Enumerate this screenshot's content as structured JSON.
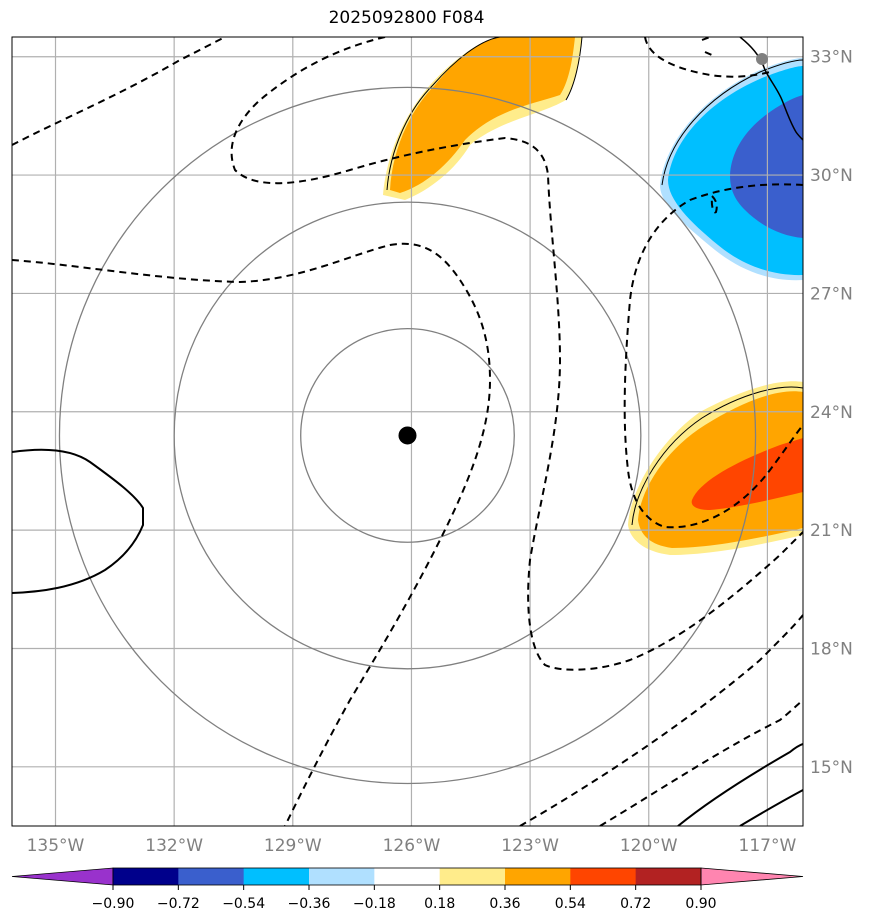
{
  "title": "2025092800 F084",
  "map": {
    "lon_range": [
      -136.1,
      -116.1
    ],
    "lat_range": [
      13.5,
      33.5
    ],
    "lon_ticks": [
      {
        "value": -135,
        "label": "135°W"
      },
      {
        "value": -132,
        "label": "132°W"
      },
      {
        "value": -129,
        "label": "129°W"
      },
      {
        "value": -126,
        "label": "126°W"
      },
      {
        "value": -123,
        "label": "123°W"
      },
      {
        "value": -120,
        "label": "120°W"
      },
      {
        "value": -117,
        "label": "117°W"
      }
    ],
    "lat_ticks": [
      {
        "value": 33,
        "label": "33°N"
      },
      {
        "value": 30,
        "label": "30°N"
      },
      {
        "value": 27,
        "label": "27°N"
      },
      {
        "value": 24,
        "label": "24°N"
      },
      {
        "value": 21,
        "label": "21°N"
      },
      {
        "value": 18,
        "label": "18°N"
      },
      {
        "value": 15,
        "label": "15°N"
      }
    ],
    "center": {
      "lon": -126.1,
      "lat": 23.4
    },
    "range_rings_deg": [
      2.7,
      5.9,
      8.8
    ]
  },
  "colorbar": {
    "levels": [
      {
        "value": -0.9,
        "label": "−0.90"
      },
      {
        "value": -0.72,
        "label": "−0.72"
      },
      {
        "value": -0.54,
        "label": "−0.54"
      },
      {
        "value": -0.36,
        "label": "−0.36"
      },
      {
        "value": -0.18,
        "label": "−0.18"
      },
      {
        "value": 0.18,
        "label": "0.18"
      },
      {
        "value": 0.36,
        "label": "0.36"
      },
      {
        "value": 0.54,
        "label": "0.54"
      },
      {
        "value": 0.72,
        "label": "0.72"
      },
      {
        "value": 0.9,
        "label": "0.90"
      }
    ],
    "colors": [
      "#9932cc",
      "#00008b",
      "#3a5fcd",
      "#00bfff",
      "#b0e0ff",
      "#ffffff",
      "#ffec8b",
      "#ffa500",
      "#ff4500",
      "#b22222",
      "#ff85b0"
    ]
  }
}
